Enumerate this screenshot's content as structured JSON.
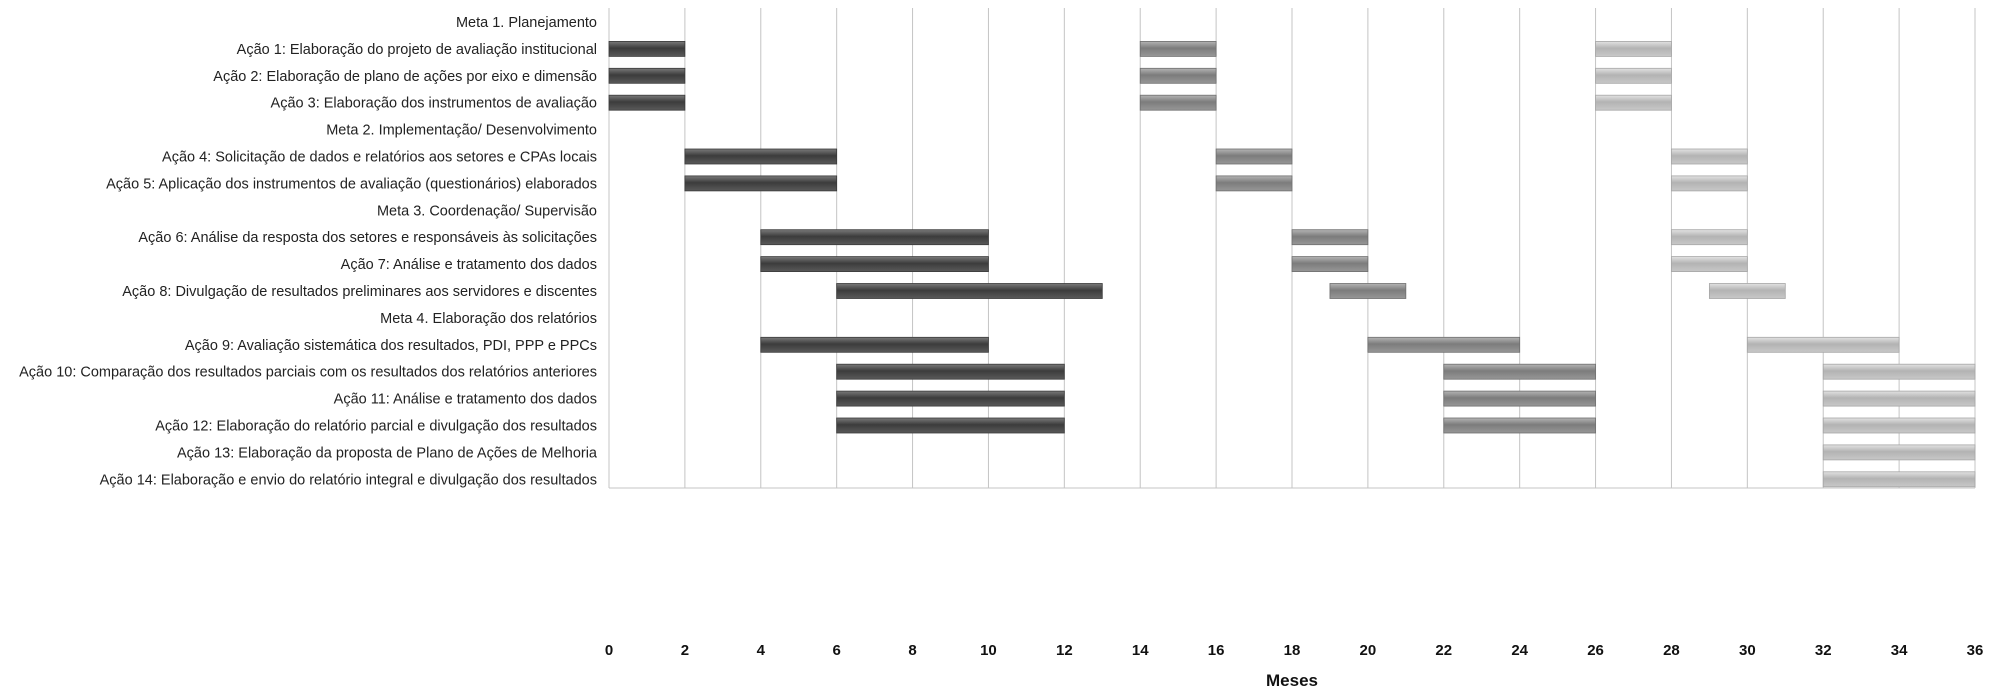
{
  "chart_data": {
    "type": "gantt",
    "xlabel": "Meses",
    "xlim": [
      0,
      36
    ],
    "x_ticks": [
      0,
      2,
      4,
      6,
      8,
      10,
      12,
      14,
      16,
      18,
      20,
      22,
      24,
      26,
      28,
      30,
      32,
      34,
      36
    ],
    "grid": "vertical",
    "phase_colors": {
      "phase1": "#555555",
      "phase2": "#8e8e8e",
      "phase3": "#c2c2c2"
    },
    "rows": [
      {
        "label": "Meta 1. Planejamento",
        "bars": []
      },
      {
        "label": "Ação 1: Elaboração do projeto de avaliação institucional",
        "bars": [
          [
            0,
            2,
            1
          ],
          [
            14,
            16,
            2
          ],
          [
            26,
            28,
            3
          ]
        ]
      },
      {
        "label": "Ação 2: Elaboração de plano de ações por eixo e dimensão",
        "bars": [
          [
            0,
            2,
            1
          ],
          [
            14,
            16,
            2
          ],
          [
            26,
            28,
            3
          ]
        ]
      },
      {
        "label": "Ação 3: Elaboração dos instrumentos de avaliação",
        "bars": [
          [
            0,
            2,
            1
          ],
          [
            14,
            16,
            2
          ],
          [
            26,
            28,
            3
          ]
        ]
      },
      {
        "label": "Meta 2. Implementação/ Desenvolvimento",
        "bars": []
      },
      {
        "label": "Ação 4: Solicitação de dados e relatórios aos setores e CPAs locais",
        "bars": [
          [
            2,
            6,
            1
          ],
          [
            16,
            18,
            2
          ],
          [
            28,
            30,
            3
          ]
        ]
      },
      {
        "label": "Ação 5: Aplicação dos instrumentos de avaliação (questionários) elaborados",
        "bars": [
          [
            2,
            6,
            1
          ],
          [
            16,
            18,
            2
          ],
          [
            28,
            30,
            3
          ]
        ]
      },
      {
        "label": "Meta 3. Coordenação/ Supervisão",
        "bars": []
      },
      {
        "label": "Ação 6: Análise da resposta dos setores e responsáveis às solicitações",
        "bars": [
          [
            4,
            10,
            1
          ],
          [
            18,
            20,
            2
          ],
          [
            28,
            30,
            3
          ]
        ]
      },
      {
        "label": "Ação 7: Análise e tratamento dos dados",
        "bars": [
          [
            4,
            10,
            1
          ],
          [
            18,
            20,
            2
          ],
          [
            28,
            30,
            3
          ]
        ]
      },
      {
        "label": "Ação 8: Divulgação de resultados preliminares aos servidores e discentes",
        "bars": [
          [
            6,
            13,
            1
          ],
          [
            19,
            21,
            2
          ],
          [
            29,
            31,
            3
          ]
        ]
      },
      {
        "label": "Meta 4. Elaboração dos relatórios",
        "bars": []
      },
      {
        "label": "Ação 9: Avaliação sistemática dos resultados, PDI, PPP e PPCs",
        "bars": [
          [
            4,
            10,
            1
          ],
          [
            20,
            24,
            2
          ],
          [
            30,
            34,
            3
          ]
        ]
      },
      {
        "label": "Ação 10: Comparação dos resultados parciais com os resultados dos relatórios anteriores",
        "bars": [
          [
            6,
            12,
            1
          ],
          [
            22,
            26,
            2
          ],
          [
            32,
            36,
            3
          ]
        ]
      },
      {
        "label": "Ação 11: Análise e tratamento dos dados",
        "bars": [
          [
            6,
            12,
            1
          ],
          [
            22,
            26,
            2
          ],
          [
            32,
            36,
            3
          ]
        ]
      },
      {
        "label": "Ação 12: Elaboração  do relatório parcial e divulgação dos resultados",
        "bars": [
          [
            6,
            12,
            1
          ],
          [
            22,
            26,
            2
          ],
          [
            32,
            36,
            3
          ]
        ]
      },
      {
        "label": "Ação 13: Elaboração da proposta de Plano de Ações de Melhoria",
        "bars": [
          [
            32,
            36,
            3
          ]
        ]
      },
      {
        "label": "Ação 14: Elaboração e envio do relatório integral e divulgação dos resultados",
        "bars": [
          [
            32,
            36,
            3
          ]
        ]
      }
    ]
  }
}
